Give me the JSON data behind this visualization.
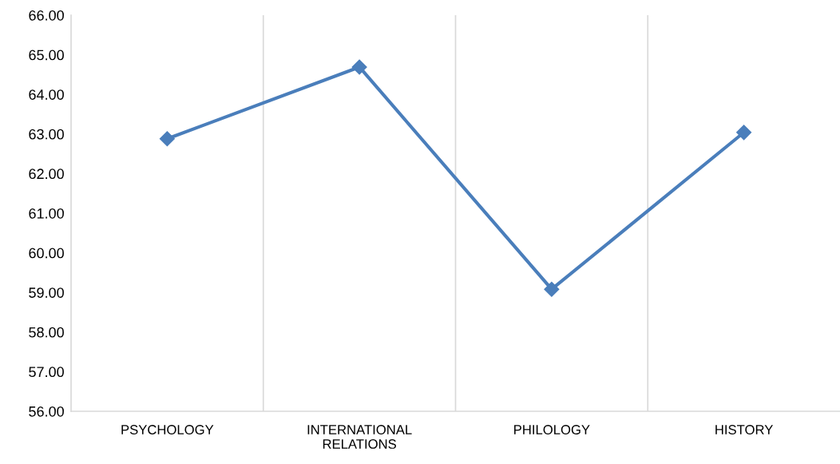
{
  "chart_data": {
    "type": "line",
    "categories": [
      "PSYCHOLOGY",
      "INTERNATIONAL RELATIONS",
      "PHILOLOGY",
      "HISTORY"
    ],
    "series": [
      {
        "color": "#4a7ebb",
        "values": [
          62.88,
          64.69,
          59.08,
          63.04
        ]
      }
    ],
    "ylim": [
      56,
      66
    ],
    "yticks": [
      {
        "value": 56,
        "label": "56.00"
      },
      {
        "value": 57,
        "label": "57.00"
      },
      {
        "value": 58,
        "label": "58.00"
      },
      {
        "value": 59,
        "label": "59.00"
      },
      {
        "value": 60,
        "label": "60.00"
      },
      {
        "value": 61,
        "label": "61.00"
      },
      {
        "value": 62,
        "label": "62.00"
      },
      {
        "value": 63,
        "label": "63.00"
      },
      {
        "value": 64,
        "label": "64.00"
      },
      {
        "value": 65,
        "label": "65.00"
      },
      {
        "value": 66,
        "label": "66.00"
      }
    ],
    "grid": "x",
    "marker": "diamond",
    "line_style": "solid",
    "legend": false
  }
}
